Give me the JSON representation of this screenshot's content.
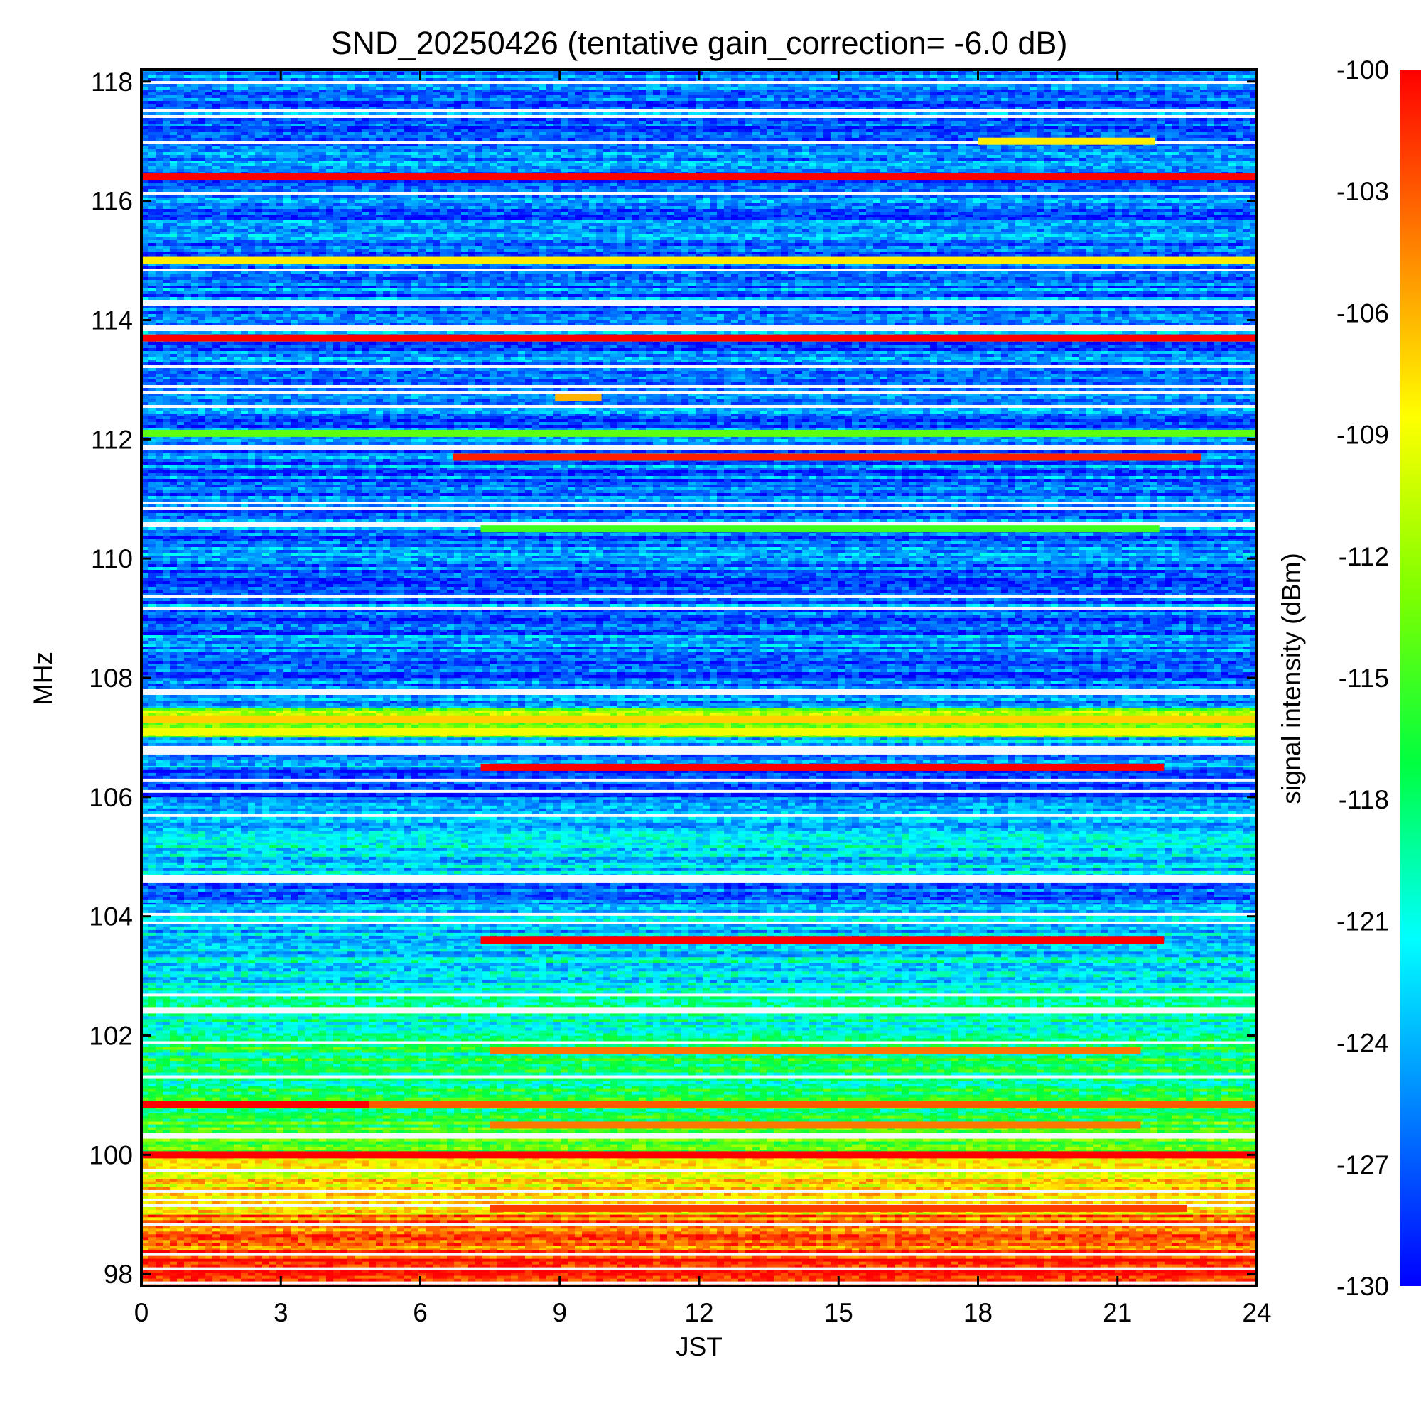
{
  "chart_data": {
    "type": "heatmap",
    "title": "SND_20250426 (tentative gain_correction= -6.0 dB)",
    "xlabel": "JST",
    "ylabel": "MHz",
    "colorbar_label": "signal intensity (dBm)",
    "xlim": [
      0,
      24
    ],
    "ylim": [
      97.8,
      118.2
    ],
    "x_ticks": [
      "0",
      "3",
      "6",
      "9",
      "12",
      "15",
      "18",
      "21",
      "24"
    ],
    "y_ticks": [
      "98",
      "100",
      "102",
      "104",
      "106",
      "108",
      "110",
      "112",
      "114",
      "116",
      "118"
    ],
    "colorbar_range": [
      -130,
      -100
    ],
    "colorbar_ticks": [
      "-100",
      "-103",
      "-106",
      "-109",
      "-112",
      "-115",
      "-118",
      "-121",
      "-124",
      "-127",
      "-130"
    ],
    "colorscale": [
      "#0000ff",
      "#0080ff",
      "#00ffff",
      "#00ff40",
      "#80ff00",
      "#ffff00",
      "#ff8000",
      "#ff0000"
    ],
    "frequency_bands": [
      {
        "from": 97.8,
        "to": 98.4,
        "level": -101.5
      },
      {
        "from": 98.4,
        "to": 99.0,
        "level": -104
      },
      {
        "from": 99.0,
        "to": 99.6,
        "level": -107
      },
      {
        "from": 99.6,
        "to": 100.0,
        "level": -110
      },
      {
        "from": 100.0,
        "to": 100.7,
        "level": -115
      },
      {
        "from": 100.7,
        "to": 101.2,
        "level": -117
      },
      {
        "from": 101.2,
        "to": 102.0,
        "level": -118
      },
      {
        "from": 102.0,
        "to": 102.8,
        "level": -119
      },
      {
        "from": 102.8,
        "to": 103.6,
        "level": -122
      },
      {
        "from": 103.6,
        "to": 104.2,
        "level": -124
      },
      {
        "from": 104.2,
        "to": 104.7,
        "level": -127
      },
      {
        "from": 104.7,
        "to": 106.0,
        "level": -123
      },
      {
        "from": 106.0,
        "to": 106.5,
        "level": -129
      },
      {
        "from": 106.5,
        "to": 107.0,
        "level": -124
      },
      {
        "from": 107.0,
        "to": 107.5,
        "level": -112
      },
      {
        "from": 107.5,
        "to": 108.0,
        "level": -126
      },
      {
        "from": 108.0,
        "to": 118.2,
        "level": -126
      }
    ],
    "strong_signals": [
      {
        "freq": 116.4,
        "x_start": 0,
        "x_end": 24,
        "level": -100
      },
      {
        "freq": 115.0,
        "x_start": 0,
        "x_end": 24,
        "level": -108
      },
      {
        "freq": 113.7,
        "x_start": 0,
        "x_end": 24,
        "level": -100
      },
      {
        "freq": 112.1,
        "x_start": 0,
        "x_end": 24,
        "level": -114
      },
      {
        "freq": 111.7,
        "x_start": 6.7,
        "x_end": 22.8,
        "level": -101
      },
      {
        "freq": 110.5,
        "x_start": 7.3,
        "x_end": 21.9,
        "level": -115
      },
      {
        "freq": 106.5,
        "x_start": 7.3,
        "x_end": 22.0,
        "level": -100
      },
      {
        "freq": 103.6,
        "x_start": 7.3,
        "x_end": 22.0,
        "level": -100
      },
      {
        "freq": 100.85,
        "x_start": 0,
        "x_end": 4.9,
        "level": -100
      },
      {
        "freq": 100.85,
        "x_start": 4.9,
        "x_end": 24,
        "level": -103
      },
      {
        "freq": 100.0,
        "x_start": 0,
        "x_end": 24,
        "level": -100
      },
      {
        "freq": 107.3,
        "x_start": 0,
        "x_end": 24,
        "level": -107
      },
      {
        "freq": 107.1,
        "x_start": 0,
        "x_end": 24,
        "level": -109
      },
      {
        "freq": 101.75,
        "x_start": 7.5,
        "x_end": 21.5,
        "level": -104
      },
      {
        "freq": 100.5,
        "x_start": 7.5,
        "x_end": 21.5,
        "level": -104
      },
      {
        "freq": 99.1,
        "x_start": 7.5,
        "x_end": 22.5,
        "level": -102
      },
      {
        "freq": 117.0,
        "x_start": 18.0,
        "x_end": 21.8,
        "level": -108
      },
      {
        "freq": 112.7,
        "x_start": 8.9,
        "x_end": 9.9,
        "level": -106
      }
    ]
  }
}
